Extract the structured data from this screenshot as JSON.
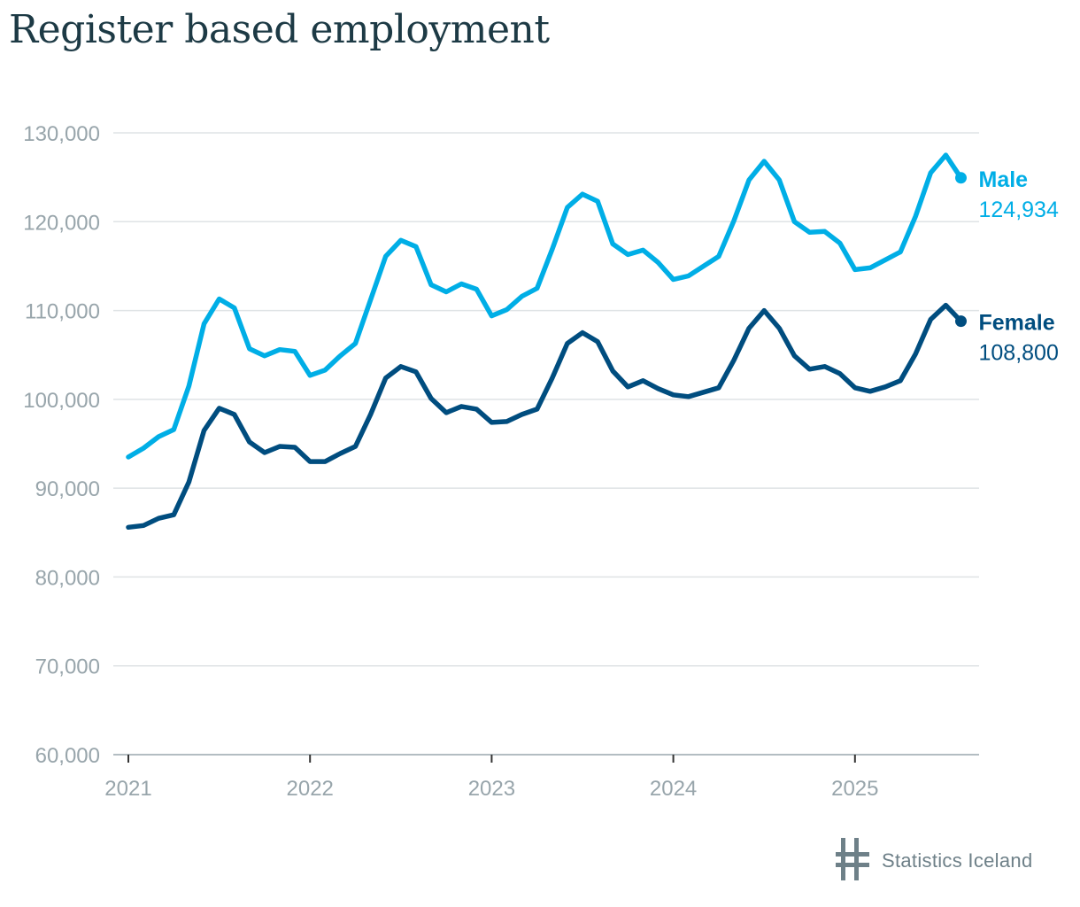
{
  "title": "Register based employment",
  "source": {
    "label": "Statistics Iceland",
    "icon": "statistics-iceland-logo-icon",
    "color": "#6e8088"
  },
  "chart_data": {
    "type": "line",
    "title": "Register based employment",
    "xlabel": "",
    "ylabel": "",
    "ylim": [
      60000,
      130000
    ],
    "y_ticks": [
      60000,
      70000,
      80000,
      90000,
      100000,
      110000,
      120000,
      130000
    ],
    "y_tick_labels": [
      "60,000",
      "70,000",
      "80,000",
      "90,000",
      "100,000",
      "110,000",
      "120,000",
      "130,000"
    ],
    "x_tick_labels": [
      "2021",
      "2022",
      "2023",
      "2024",
      "2025"
    ],
    "x_ticks_month_index": [
      0,
      12,
      24,
      36,
      48
    ],
    "x_start": "2021-01",
    "x_frequency": "monthly",
    "grid": true,
    "series": [
      {
        "name": "Male",
        "color": "#00aee6",
        "end_label": "Male",
        "end_value_label": "124,934",
        "values": [
          93500,
          94500,
          95800,
          96600,
          101500,
          108500,
          111300,
          110300,
          105700,
          104900,
          105600,
          105400,
          102700,
          103300,
          104900,
          106300,
          111200,
          116100,
          117900,
          117200,
          112900,
          112100,
          113000,
          112400,
          109400,
          110100,
          111600,
          112500,
          116900,
          121600,
          123100,
          122300,
          117500,
          116300,
          116800,
          115400,
          113500,
          113900,
          115000,
          116100,
          120100,
          124700,
          126800,
          124700,
          120000,
          118800,
          118900,
          117600,
          114600,
          114800,
          115700,
          116600,
          120600,
          125500,
          127500,
          124934
        ]
      },
      {
        "name": "Female",
        "color": "#004d7f",
        "end_label": "Female",
        "end_value_label": "108,800",
        "values": [
          85600,
          85800,
          86600,
          87000,
          90700,
          96500,
          99000,
          98300,
          95200,
          94000,
          94700,
          94600,
          93000,
          93000,
          93900,
          94700,
          98300,
          102400,
          103700,
          103100,
          100100,
          98500,
          99200,
          98900,
          97400,
          97500,
          98300,
          98900,
          102400,
          106300,
          107500,
          106500,
          103200,
          101400,
          102100,
          101200,
          100500,
          100300,
          100800,
          101300,
          104400,
          108000,
          110000,
          108000,
          104900,
          103400,
          103700,
          102900,
          101300,
          100900,
          101400,
          102100,
          105100,
          109000,
          110600,
          108800
        ]
      }
    ]
  }
}
